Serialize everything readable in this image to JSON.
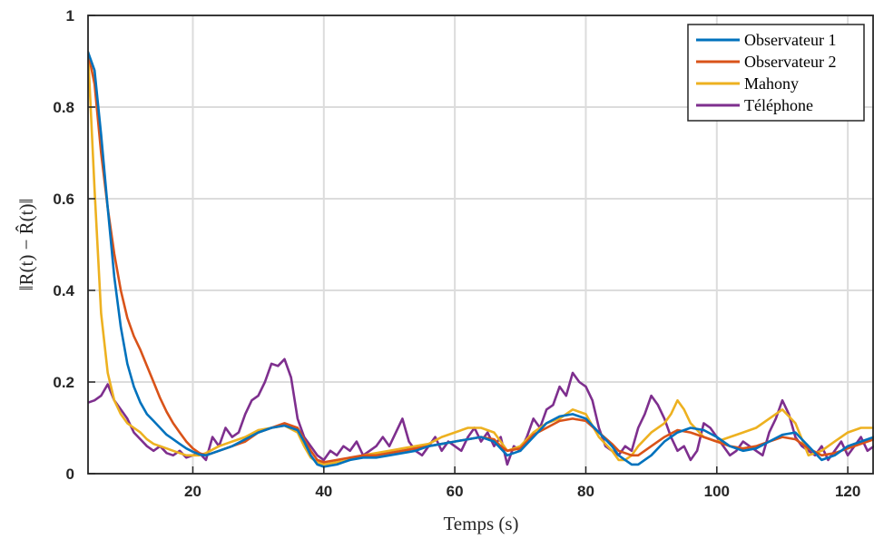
{
  "chart_data": {
    "type": "line",
    "title": "",
    "xlabel": "Temps (s)",
    "ylabel": "‖R(t) − R̂(t)‖",
    "xlim": [
      4,
      124
    ],
    "ylim": [
      0,
      1
    ],
    "xticks": [
      20,
      40,
      60,
      80,
      100,
      120
    ],
    "yticks": [
      0,
      0.2,
      0.4,
      0.6,
      0.8,
      1
    ],
    "xtick_labels": [
      "20",
      "40",
      "60",
      "80",
      "100",
      "120"
    ],
    "ytick_labels": [
      "0",
      "0.2",
      "0.4",
      "0.6",
      "0.8",
      "1"
    ],
    "grid": true,
    "legend_position": "top-right",
    "series": [
      {
        "name": "Observateur 1",
        "color": "#0072BD",
        "x": [
          4,
          5,
          6,
          7,
          8,
          9,
          10,
          11,
          12,
          13,
          14,
          15,
          16,
          17,
          18,
          19,
          20,
          21,
          22,
          24,
          26,
          28,
          30,
          32,
          34,
          36,
          37,
          38,
          39,
          40,
          42,
          44,
          46,
          48,
          50,
          52,
          54,
          56,
          58,
          60,
          62,
          64,
          66,
          67,
          68,
          70,
          72,
          74,
          76,
          78,
          80,
          82,
          84,
          85,
          86,
          87,
          88,
          90,
          92,
          94,
          96,
          98,
          100,
          102,
          104,
          106,
          108,
          110,
          112,
          114,
          116,
          118,
          120,
          122,
          124
        ],
        "y": [
          0.92,
          0.88,
          0.74,
          0.58,
          0.43,
          0.32,
          0.24,
          0.19,
          0.155,
          0.13,
          0.115,
          0.1,
          0.085,
          0.075,
          0.065,
          0.055,
          0.048,
          0.042,
          0.04,
          0.05,
          0.06,
          0.075,
          0.09,
          0.1,
          0.105,
          0.095,
          0.07,
          0.04,
          0.02,
          0.015,
          0.02,
          0.03,
          0.035,
          0.035,
          0.04,
          0.045,
          0.05,
          0.06,
          0.065,
          0.07,
          0.075,
          0.08,
          0.07,
          0.055,
          0.04,
          0.05,
          0.08,
          0.11,
          0.125,
          0.13,
          0.12,
          0.09,
          0.06,
          0.04,
          0.03,
          0.02,
          0.02,
          0.04,
          0.07,
          0.09,
          0.1,
          0.095,
          0.08,
          0.06,
          0.05,
          0.055,
          0.07,
          0.085,
          0.09,
          0.06,
          0.03,
          0.04,
          0.06,
          0.07,
          0.08
        ]
      },
      {
        "name": "Observateur 2",
        "color": "#D95319",
        "x": [
          4,
          5,
          6,
          7,
          8,
          9,
          10,
          11,
          12,
          13,
          14,
          15,
          16,
          17,
          18,
          19,
          20,
          21,
          22,
          24,
          26,
          28,
          30,
          32,
          34,
          36,
          37,
          38,
          39,
          40,
          42,
          44,
          46,
          48,
          50,
          52,
          54,
          56,
          58,
          60,
          62,
          64,
          66,
          67,
          68,
          70,
          72,
          74,
          76,
          78,
          80,
          82,
          84,
          85,
          86,
          87,
          88,
          90,
          92,
          94,
          96,
          98,
          100,
          102,
          104,
          106,
          108,
          110,
          112,
          114,
          116,
          118,
          120,
          122,
          124
        ],
        "y": [
          0.92,
          0.85,
          0.7,
          0.58,
          0.48,
          0.4,
          0.34,
          0.3,
          0.27,
          0.235,
          0.2,
          0.165,
          0.135,
          0.11,
          0.09,
          0.07,
          0.055,
          0.045,
          0.04,
          0.05,
          0.06,
          0.07,
          0.09,
          0.1,
          0.11,
          0.1,
          0.075,
          0.05,
          0.03,
          0.025,
          0.03,
          0.035,
          0.04,
          0.04,
          0.045,
          0.05,
          0.055,
          0.06,
          0.065,
          0.07,
          0.075,
          0.08,
          0.075,
          0.06,
          0.05,
          0.055,
          0.085,
          0.1,
          0.115,
          0.12,
          0.115,
          0.09,
          0.065,
          0.05,
          0.045,
          0.04,
          0.04,
          0.06,
          0.08,
          0.095,
          0.09,
          0.08,
          0.07,
          0.06,
          0.055,
          0.06,
          0.07,
          0.08,
          0.075,
          0.055,
          0.04,
          0.045,
          0.055,
          0.065,
          0.075
        ]
      },
      {
        "name": "Mahony",
        "color": "#EDB120",
        "x": [
          4,
          5,
          6,
          7,
          8,
          9,
          10,
          11,
          12,
          13,
          14,
          15,
          16,
          17,
          18,
          19,
          20,
          21,
          22,
          24,
          26,
          28,
          30,
          32,
          34,
          36,
          37,
          38,
          39,
          40,
          42,
          44,
          46,
          48,
          50,
          52,
          54,
          56,
          58,
          60,
          62,
          64,
          66,
          67,
          68,
          70,
          72,
          74,
          76,
          78,
          80,
          82,
          84,
          85,
          86,
          87,
          88,
          90,
          92,
          93,
          94,
          95,
          96,
          98,
          100,
          102,
          104,
          106,
          108,
          110,
          112,
          114,
          116,
          118,
          120,
          122,
          124
        ],
        "y": [
          0.92,
          0.62,
          0.35,
          0.22,
          0.16,
          0.13,
          0.11,
          0.1,
          0.09,
          0.075,
          0.065,
          0.06,
          0.055,
          0.05,
          0.045,
          0.04,
          0.04,
          0.04,
          0.045,
          0.06,
          0.07,
          0.08,
          0.095,
          0.1,
          0.105,
          0.09,
          0.06,
          0.035,
          0.025,
          0.02,
          0.025,
          0.03,
          0.04,
          0.045,
          0.05,
          0.055,
          0.06,
          0.065,
          0.08,
          0.09,
          0.1,
          0.1,
          0.09,
          0.07,
          0.05,
          0.06,
          0.09,
          0.11,
          0.12,
          0.14,
          0.13,
          0.08,
          0.05,
          0.03,
          0.03,
          0.04,
          0.06,
          0.09,
          0.11,
          0.13,
          0.16,
          0.14,
          0.11,
          0.08,
          0.07,
          0.08,
          0.09,
          0.1,
          0.12,
          0.14,
          0.11,
          0.04,
          0.05,
          0.07,
          0.09,
          0.1,
          0.1
        ]
      },
      {
        "name": "Téléphone",
        "color": "#7E2F8E",
        "x": [
          4,
          5,
          6,
          7,
          8,
          9,
          10,
          11,
          12,
          13,
          14,
          15,
          16,
          17,
          18,
          19,
          20,
          21,
          22,
          23,
          24,
          25,
          26,
          27,
          28,
          29,
          30,
          31,
          32,
          33,
          34,
          35,
          36,
          37,
          38,
          39,
          40,
          41,
          42,
          43,
          44,
          45,
          46,
          47,
          48,
          49,
          50,
          51,
          52,
          53,
          54,
          55,
          56,
          57,
          58,
          59,
          60,
          61,
          62,
          63,
          64,
          65,
          66,
          67,
          68,
          69,
          70,
          71,
          72,
          73,
          74,
          75,
          76,
          77,
          78,
          79,
          80,
          81,
          82,
          83,
          84,
          85,
          86,
          87,
          88,
          89,
          90,
          91,
          92,
          93,
          94,
          95,
          96,
          97,
          98,
          99,
          100,
          101,
          102,
          103,
          104,
          105,
          106,
          107,
          108,
          109,
          110,
          111,
          112,
          113,
          114,
          115,
          116,
          117,
          118,
          119,
          120,
          121,
          122,
          123,
          124
        ],
        "y": [
          0.155,
          0.16,
          0.17,
          0.195,
          0.16,
          0.14,
          0.12,
          0.09,
          0.075,
          0.06,
          0.05,
          0.06,
          0.045,
          0.04,
          0.05,
          0.035,
          0.04,
          0.045,
          0.03,
          0.08,
          0.06,
          0.1,
          0.08,
          0.09,
          0.13,
          0.16,
          0.17,
          0.2,
          0.24,
          0.235,
          0.25,
          0.21,
          0.12,
          0.08,
          0.06,
          0.04,
          0.03,
          0.05,
          0.04,
          0.06,
          0.05,
          0.07,
          0.04,
          0.05,
          0.06,
          0.08,
          0.06,
          0.09,
          0.12,
          0.07,
          0.05,
          0.04,
          0.06,
          0.08,
          0.05,
          0.07,
          0.06,
          0.05,
          0.08,
          0.1,
          0.07,
          0.09,
          0.06,
          0.08,
          0.02,
          0.06,
          0.05,
          0.08,
          0.12,
          0.1,
          0.14,
          0.15,
          0.19,
          0.17,
          0.22,
          0.2,
          0.19,
          0.16,
          0.1,
          0.06,
          0.05,
          0.04,
          0.06,
          0.05,
          0.1,
          0.13,
          0.17,
          0.15,
          0.12,
          0.08,
          0.05,
          0.06,
          0.03,
          0.05,
          0.11,
          0.1,
          0.08,
          0.06,
          0.04,
          0.05,
          0.07,
          0.06,
          0.05,
          0.04,
          0.09,
          0.12,
          0.16,
          0.13,
          0.08,
          0.06,
          0.05,
          0.04,
          0.06,
          0.03,
          0.05,
          0.07,
          0.04,
          0.06,
          0.08,
          0.05,
          0.06
        ]
      }
    ]
  }
}
